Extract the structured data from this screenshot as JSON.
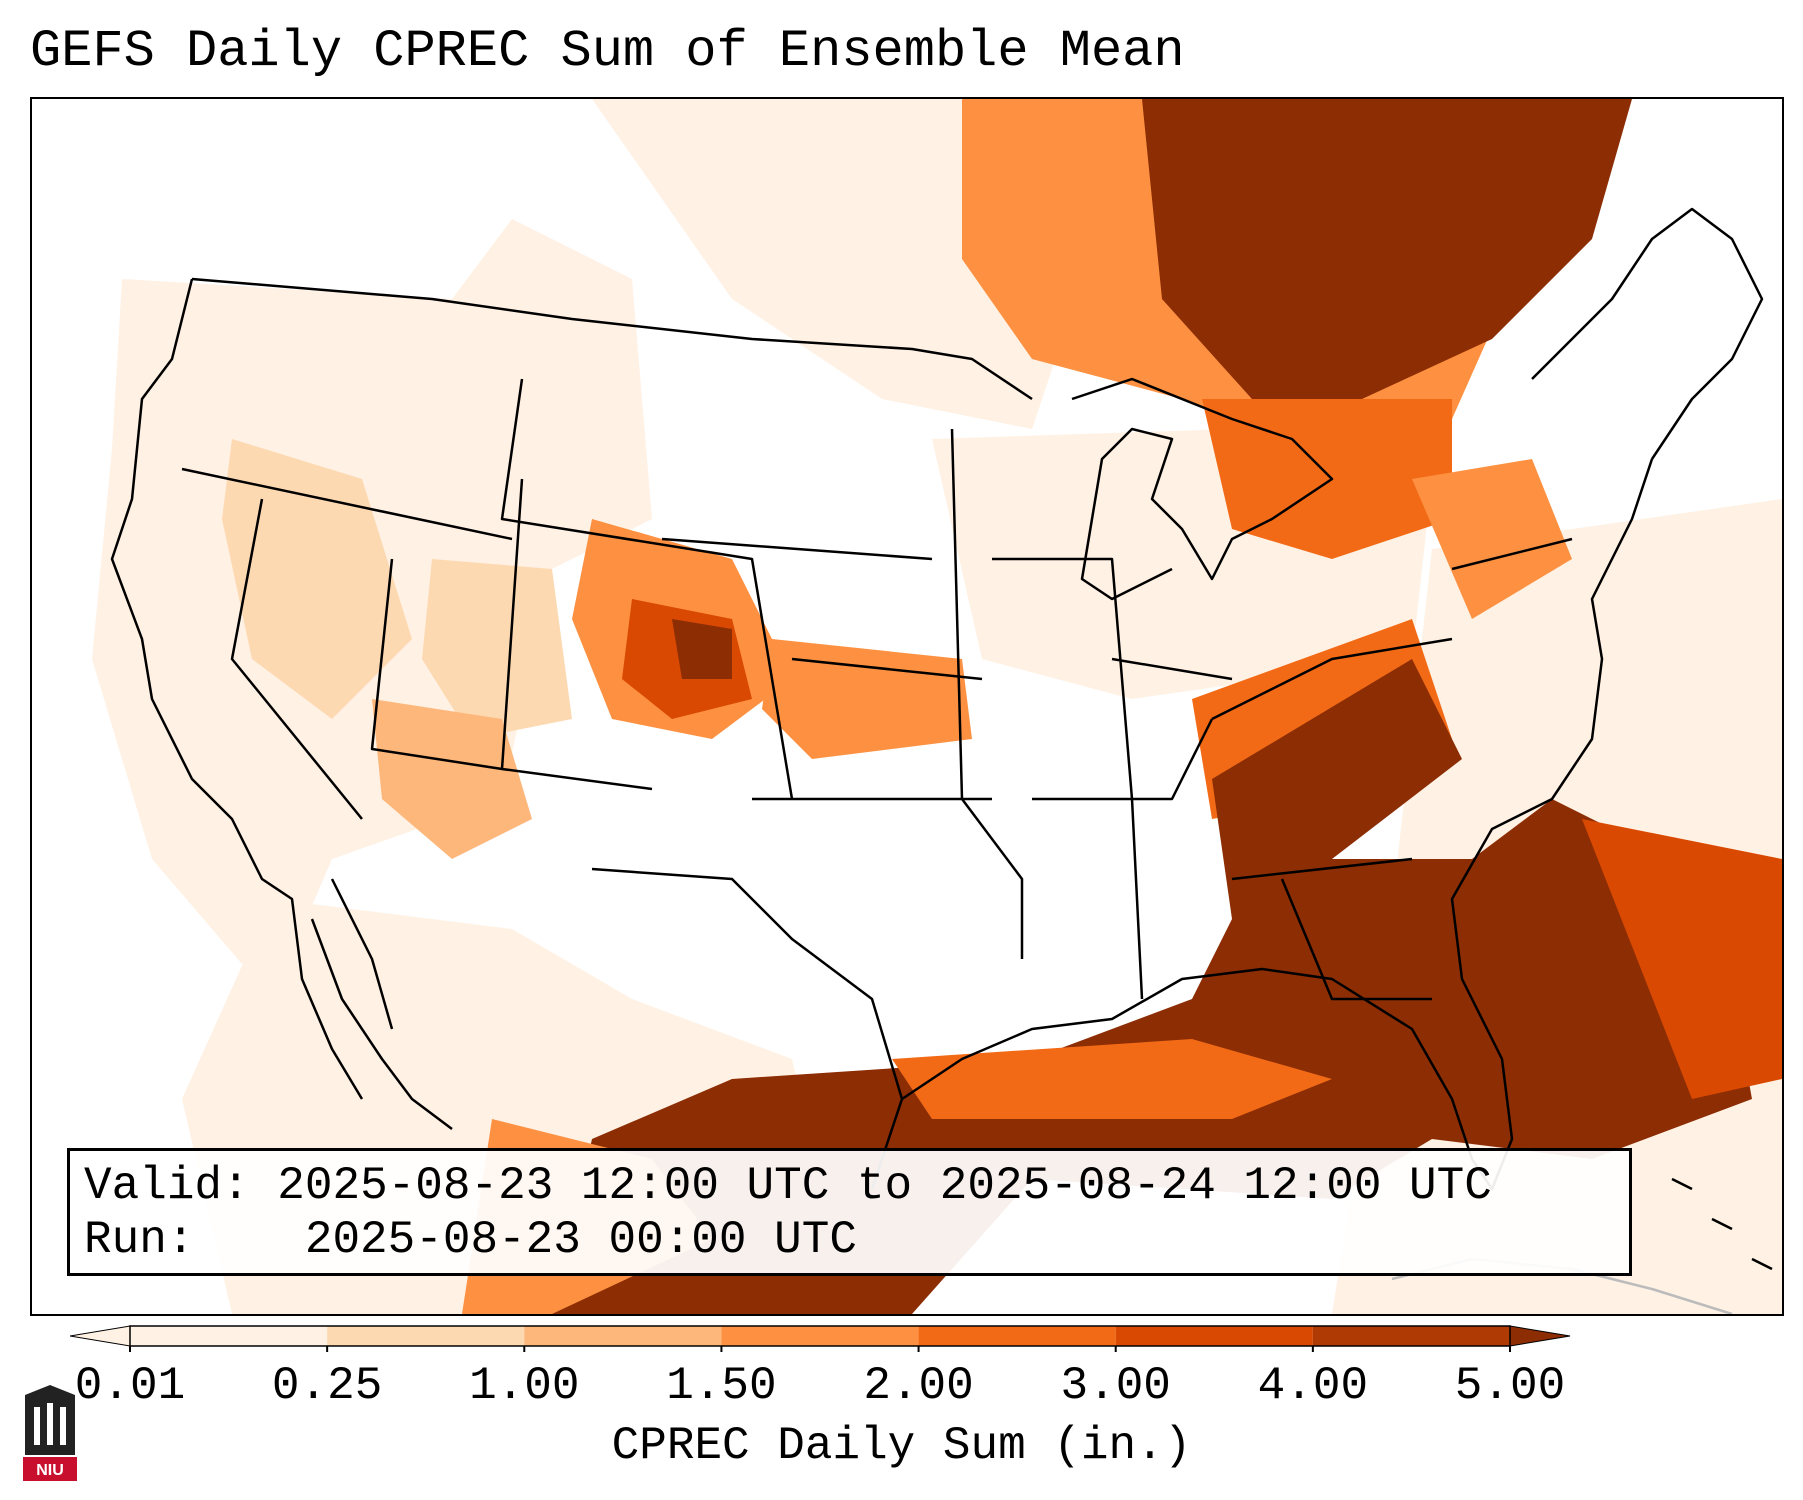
{
  "title": "GEFS Daily CPREC Sum of Ensemble Mean",
  "info": {
    "valid_label": "Valid:",
    "valid_value": "2025-08-23 12:00 UTC to 2025-08-24 12:00 UTC",
    "run_label": "Run:",
    "run_value": "2025-08-23 00:00 UTC"
  },
  "colorbar": {
    "label": "CPREC Daily Sum (in.)",
    "ticks": [
      "0.01",
      "0.25",
      "1.00",
      "1.50",
      "2.00",
      "3.00",
      "4.00",
      "5.00"
    ],
    "colors": [
      "#fff1e4",
      "#fdd9b2",
      "#fdb77a",
      "#fd9141",
      "#f36a16",
      "#d94901",
      "#b03a03",
      "#8c2d04"
    ],
    "extend": "both"
  },
  "logo": {
    "text": "NIU",
    "color": "#c8102e"
  },
  "map": {
    "coastline_color": "#000000",
    "precip_colors": {
      "light": "#fff1e4",
      "pale": "#fdd9b2",
      "medium": "#fdb77a",
      "moderate": "#fd9141",
      "strong": "#f36a16",
      "heavy": "#d94901",
      "extreme": "#8c2d04"
    }
  }
}
